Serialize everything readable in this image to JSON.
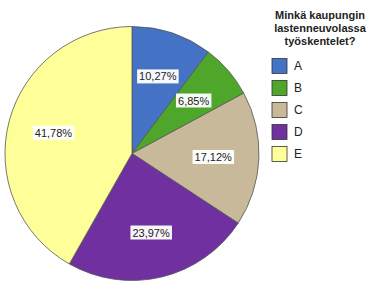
{
  "chart_data": {
    "type": "pie",
    "title": "Minkä kaupungin\nlastenneuvolassa\ntyöskentelet?",
    "categories": [
      "A",
      "B",
      "C",
      "D",
      "E"
    ],
    "values": [
      10.27,
      6.85,
      17.12,
      23.97,
      41.78
    ],
    "value_labels": [
      "10,27%",
      "6,85%",
      "17,12%",
      "23,97%",
      "41,78%"
    ],
    "colors": [
      "#4472C4",
      "#4EA72A",
      "#C8B99A",
      "#7030A0",
      "#FFFF99"
    ],
    "data_labels": true,
    "legend": "right"
  }
}
